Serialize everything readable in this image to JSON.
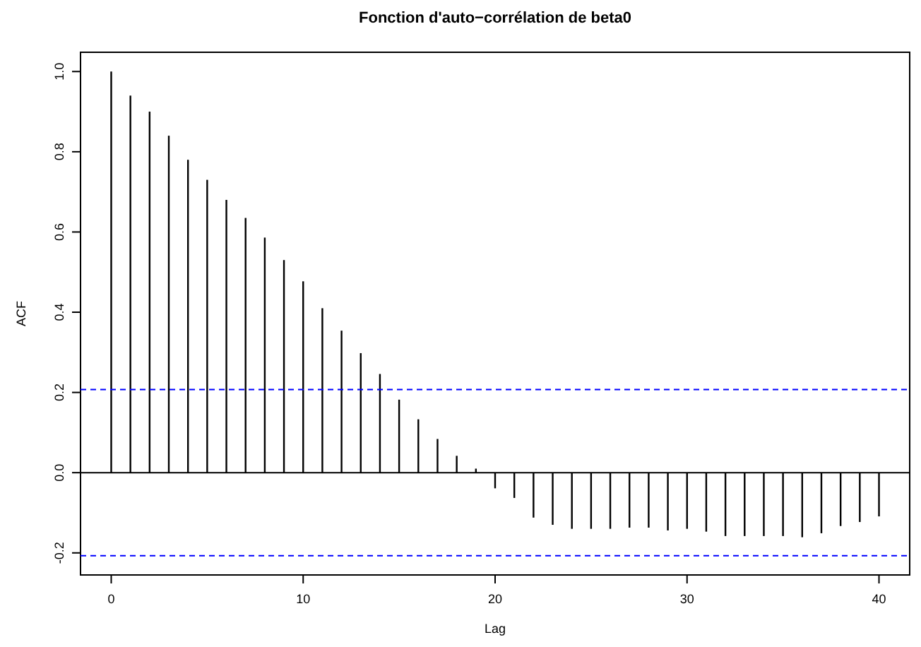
{
  "chart_data": {
    "type": "bar",
    "title": "Fonction d'auto−corrélation de beta0",
    "xlabel": "Lag",
    "ylabel": "ACF",
    "x": [
      0,
      1,
      2,
      3,
      4,
      5,
      6,
      7,
      8,
      9,
      10,
      11,
      12,
      13,
      14,
      15,
      16,
      17,
      18,
      19,
      20,
      21,
      22,
      23,
      24,
      25,
      26,
      27,
      28,
      29,
      30,
      31,
      32,
      33,
      34,
      35,
      36,
      37,
      38,
      39,
      40
    ],
    "values": [
      1.0,
      0.94,
      0.9,
      0.84,
      0.78,
      0.73,
      0.68,
      0.635,
      0.586,
      0.53,
      0.477,
      0.41,
      0.354,
      0.298,
      0.246,
      0.182,
      0.133,
      0.084,
      0.042,
      0.01,
      -0.039,
      -0.063,
      -0.112,
      -0.13,
      -0.14,
      -0.14,
      -0.14,
      -0.137,
      -0.137,
      -0.144,
      -0.14,
      -0.147,
      -0.158,
      -0.158,
      -0.158,
      -0.158,
      -0.161,
      -0.151,
      -0.133,
      -0.123,
      -0.109
    ],
    "color": "#000000",
    "xlim": [
      -1.6,
      41.6
    ],
    "xticks": [
      0,
      10,
      20,
      30,
      40
    ],
    "ylim": [
      -0.255,
      1.048
    ],
    "yticks": [
      -0.2,
      {
        "value": 0,
        "label": "0.0"
      },
      0.2,
      0.4,
      0.6,
      0.8,
      {
        "value": 1,
        "label": "1.0"
      }
    ],
    "ref_lines": [
      {
        "axis": "y",
        "value": 0,
        "color": "#000000",
        "line_style": "solid"
      },
      {
        "axis": "y",
        "value": 0.207,
        "color": "#0000ff",
        "line_style": "dashed"
      },
      {
        "axis": "y",
        "value": -0.207,
        "color": "#0000ff",
        "line_style": "dashed"
      }
    ]
  }
}
